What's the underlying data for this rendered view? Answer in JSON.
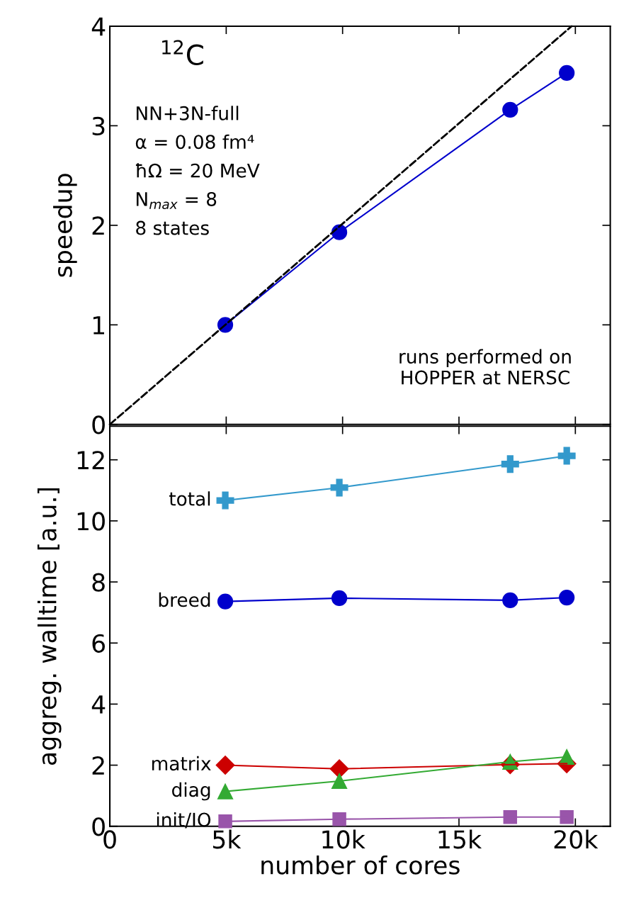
{
  "chart_data": [
    {
      "type": "line",
      "ylabel": "speedup",
      "xlim": [
        0,
        21500
      ],
      "ylim": [
        0,
        4
      ],
      "grid": false,
      "legend": false,
      "tick_labels": "y",
      "xticks": [
        0,
        5000,
        10000,
        15000,
        20000
      ],
      "yticks": [
        0,
        1,
        2,
        3,
        4
      ],
      "series": [
        {
          "color": "#0000cc",
          "marker": "circle",
          "line_style": "solid",
          "x": [
            4960,
            9860,
            17200,
            19630
          ],
          "values": [
            1.0,
            1.93,
            3.16,
            3.53
          ]
        },
        {
          "color": "#000000",
          "marker": "none",
          "line_style": "dashed",
          "x": [
            0,
            19840
          ],
          "values": [
            0,
            4
          ]
        }
      ],
      "annotations": [
        "$^{12}$C",
        "NN+3N-full",
        "α = 0.08 fm⁴",
        "ħΩ = 20 MeV",
        "N$_{max}$ = 8",
        "8 states",
        "runs performed on\nHOPPER at NERSC"
      ]
    },
    {
      "type": "line",
      "xlabel": "number of cores",
      "ylabel": "aggreg. walltime [a.u.]",
      "xlim": [
        0,
        21500
      ],
      "ylim": [
        0,
        13.1
      ],
      "grid": false,
      "legend": false,
      "xticks": [
        {
          "value": 0,
          "label": "0"
        },
        {
          "value": 5000,
          "label": "5k"
        },
        {
          "value": 10000,
          "label": "10k"
        },
        {
          "value": 15000,
          "label": "15k"
        },
        {
          "value": 20000,
          "label": "20k"
        }
      ],
      "yticks": [
        0,
        2,
        4,
        6,
        8,
        10,
        12
      ],
      "x": [
        4960,
        9860,
        17200,
        19630
      ],
      "series": [
        {
          "name": "total",
          "color": "#3399cc",
          "marker": "cross",
          "values": [
            10.67,
            11.09,
            11.86,
            12.13
          ]
        },
        {
          "name": "breed",
          "color": "#0000cc",
          "marker": "circle",
          "values": [
            7.36,
            7.47,
            7.4,
            7.49
          ]
        },
        {
          "name": "matrix",
          "color": "#cc0000",
          "marker": "diamond",
          "values": [
            2.0,
            1.88,
            2.02,
            2.05
          ]
        },
        {
          "name": "diag",
          "color": "#33aa33",
          "marker": "triangle",
          "values": [
            1.14,
            1.48,
            2.11,
            2.27
          ]
        },
        {
          "name": "init/IO",
          "color": "#9955aa",
          "marker": "square",
          "values": [
            0.16,
            0.23,
            0.3,
            0.3
          ]
        }
      ]
    }
  ]
}
